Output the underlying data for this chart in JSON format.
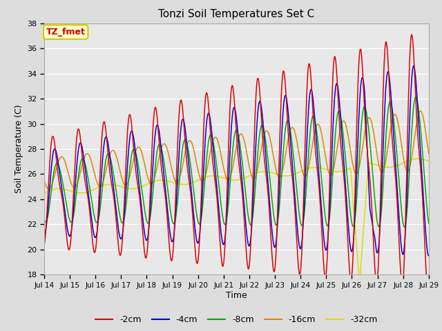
{
  "title": "Tonzi Soil Temperatures Set C",
  "xlabel": "Time",
  "ylabel": "Soil Temperature (C)",
  "ylim": [
    18,
    38
  ],
  "yticks": [
    18,
    20,
    22,
    24,
    26,
    28,
    30,
    32,
    34,
    36,
    38
  ],
  "annotation_text": "TZ_fmet",
  "annotation_color": "#cc0000",
  "annotation_bg": "#ffffcc",
  "annotation_border": "#cccc00",
  "fig_bg_color": "#dddddd",
  "plot_bg": "#e8e8e8",
  "series_colors": {
    "-2cm": "#dd0000",
    "-4cm": "#0000dd",
    "-8cm": "#00aa00",
    "-16cm": "#dd8800",
    "-32cm": "#dddd00"
  },
  "x_tick_labels": [
    "Jul 14",
    "Jul 15",
    "Jul 16",
    "Jul 17",
    "Jul 18",
    "Jul 19",
    "Jul 20",
    "Jul 21",
    "Jul 22",
    "Jul 23",
    "Jul 24",
    "Jul 25",
    "Jul 26",
    "Jul 27",
    "Jul 28",
    "Jul 29"
  ],
  "legend_labels": [
    "-2cm",
    "-4cm",
    "-8cm",
    "-16cm",
    "-32cm"
  ],
  "n_days": 15,
  "n_per_day": 48
}
